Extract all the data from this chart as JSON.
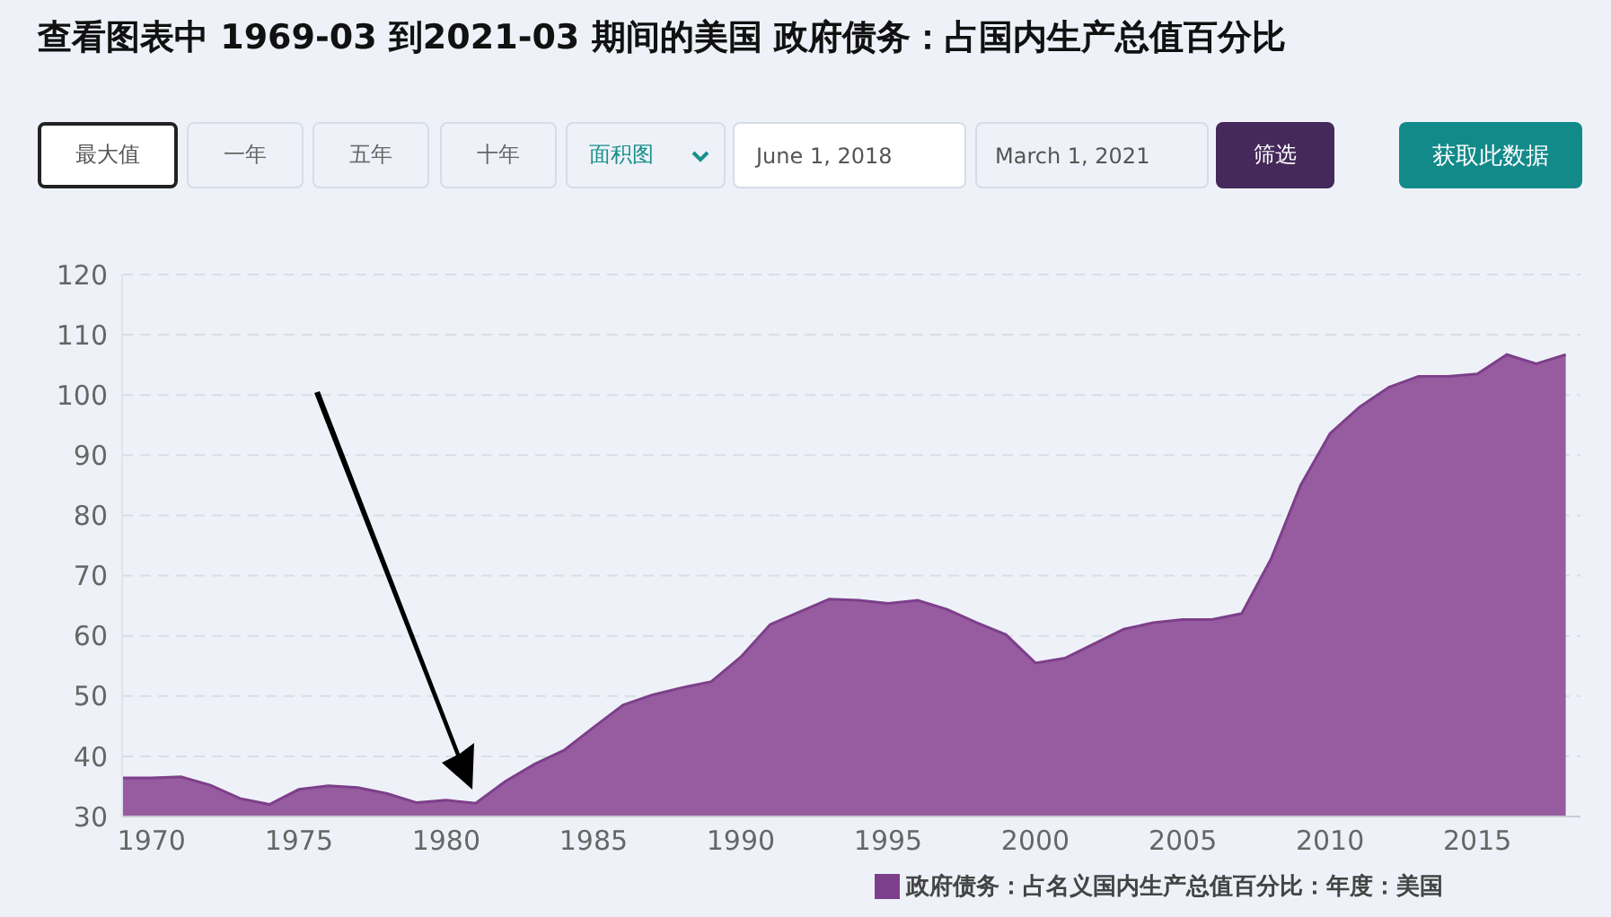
{
  "chart_data": {
    "type": "area",
    "title": "查看图表中 1969-03 到2021-03 期间的美国 政府债务：占国内生产总值百分比",
    "annotations": [
      "最大值",
      "一年",
      "五年",
      "十年",
      "面积图",
      "June 1, 2018",
      "March 1, 2021",
      "筛选",
      "获取此数据"
    ],
    "x": [
      1969,
      1970,
      1971,
      1972,
      1973,
      1974,
      1975,
      1976,
      1977,
      1978,
      1979,
      1980,
      1981,
      1982,
      1983,
      1984,
      1985,
      1986,
      1987,
      1988,
      1989,
      1990,
      1991,
      1992,
      1993,
      1994,
      1995,
      1996,
      1997,
      1998,
      1999,
      2000,
      2001,
      2002,
      2003,
      2004,
      2005,
      2006,
      2007,
      2008,
      2009,
      2010,
      2011,
      2012,
      2013,
      2014,
      2015,
      2016,
      2017,
      2018
    ],
    "series": [
      {
        "name": "政府债务：占名义国内生产总值百分比：年度：美国",
        "color": "#975ca0",
        "values": [
          36.4,
          36.4,
          36.6,
          35.2,
          33.0,
          32.0,
          34.5,
          35.1,
          34.8,
          33.8,
          32.3,
          32.7,
          32.2,
          35.8,
          38.7,
          41.0,
          44.8,
          48.5,
          50.2,
          51.4,
          52.4,
          56.5,
          61.9,
          64.0,
          66.1,
          65.9,
          65.4,
          65.9,
          64.4,
          62.2,
          60.2,
          55.5,
          56.3,
          58.7,
          61.1,
          62.2,
          62.7,
          62.7,
          63.7,
          72.8,
          85.0,
          93.6,
          98.0,
          101.3,
          103.1,
          103.1,
          103.5,
          106.7,
          105.2,
          106.7
        ]
      }
    ],
    "xlim": [
      1969,
      2018.5
    ],
    "xticks": [
      1970,
      1975,
      1980,
      1985,
      1990,
      1995,
      2000,
      2005,
      2010,
      2015
    ],
    "ylim": [
      30,
      120
    ],
    "yticks": [
      30,
      40,
      50,
      60,
      70,
      80,
      90,
      100,
      110,
      120
    ],
    "grid": "y",
    "legend": "bottom",
    "marker": "none"
  }
}
